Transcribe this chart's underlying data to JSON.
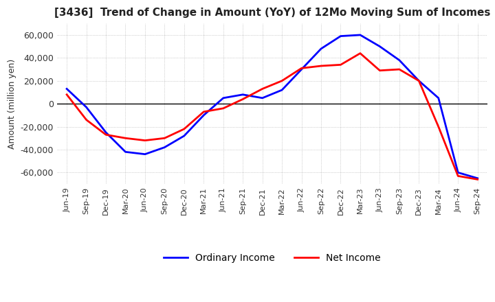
{
  "title": "[3436]  Trend of Change in Amount (YoY) of 12Mo Moving Sum of Incomes",
  "ylabel": "Amount (million yen)",
  "ylim": [
    -70000,
    70000
  ],
  "yticks": [
    -60000,
    -40000,
    -20000,
    0,
    20000,
    40000,
    60000
  ],
  "bg_color": "#ffffff",
  "fig_bg_color": "#ffffff",
  "ordinary_income_color": "#0000ff",
  "net_income_color": "#ff0000",
  "x_labels": [
    "Jun-19",
    "Sep-19",
    "Dec-19",
    "Mar-20",
    "Jun-20",
    "Sep-20",
    "Dec-20",
    "Mar-21",
    "Jun-21",
    "Sep-21",
    "Dec-21",
    "Mar-22",
    "Jun-22",
    "Sep-22",
    "Dec-22",
    "Mar-23",
    "Jun-23",
    "Sep-23",
    "Dec-23",
    "Mar-24",
    "Jun-24",
    "Sep-24"
  ],
  "ordinary_income": [
    13000,
    -3000,
    -25000,
    -42000,
    -44000,
    -38000,
    -28000,
    -10000,
    5000,
    8000,
    5000,
    12000,
    30000,
    48000,
    59000,
    60000,
    50000,
    38000,
    20000,
    5000,
    -60000,
    -65000
  ],
  "net_income": [
    8000,
    -14000,
    -27000,
    -30000,
    -32000,
    -30000,
    -22000,
    -7000,
    -4000,
    4000,
    13000,
    20000,
    31000,
    33000,
    34000,
    44000,
    29000,
    30000,
    20000,
    -20000,
    -63000,
    -66000
  ]
}
